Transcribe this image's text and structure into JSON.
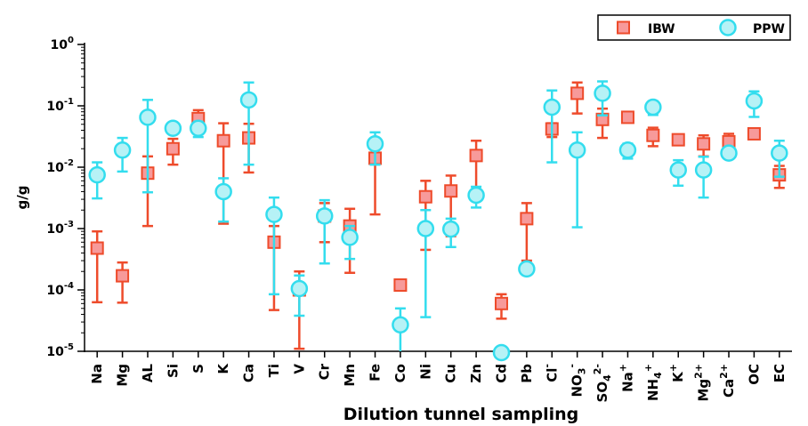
{
  "chart_data": {
    "type": "scatter",
    "xlabel": "Dilution tunnel sampling",
    "ylabel": "g/g",
    "yscale": "log",
    "ylim": [
      1e-05,
      1
    ],
    "yticks": [
      {
        "value": 1,
        "mantissa": "10",
        "exp": "0"
      },
      {
        "value": 0.1,
        "mantissa": "10",
        "exp": "-1"
      },
      {
        "value": 0.01,
        "mantissa": "10",
        "exp": "-2"
      },
      {
        "value": 0.001,
        "mantissa": "10",
        "exp": "-3"
      },
      {
        "value": 0.0001,
        "mantissa": "10",
        "exp": "-4"
      },
      {
        "value": 1e-05,
        "mantissa": "10",
        "exp": "-5"
      }
    ],
    "categories": [
      {
        "base": "Na",
        "sup": ""
      },
      {
        "base": "Mg",
        "sup": ""
      },
      {
        "base": "AL",
        "sup": ""
      },
      {
        "base": "Si",
        "sup": ""
      },
      {
        "base": "S",
        "sup": ""
      },
      {
        "base": "K",
        "sup": ""
      },
      {
        "base": "Ca",
        "sup": ""
      },
      {
        "base": "Ti",
        "sup": ""
      },
      {
        "base": "V",
        "sup": ""
      },
      {
        "base": "Cr",
        "sup": ""
      },
      {
        "base": "Mn",
        "sup": ""
      },
      {
        "base": "Fe",
        "sup": ""
      },
      {
        "base": "Co",
        "sup": ""
      },
      {
        "base": "Ni",
        "sup": ""
      },
      {
        "base": "Cu",
        "sup": ""
      },
      {
        "base": "Zn",
        "sup": ""
      },
      {
        "base": "Cd",
        "sup": ""
      },
      {
        "base": "Pb",
        "sup": ""
      },
      {
        "base": "Cl",
        "sup": "-"
      },
      {
        "base": "NO3",
        "sup": "-"
      },
      {
        "base": "SO4",
        "sup": "2-"
      },
      {
        "base": "Na",
        "sup": "+"
      },
      {
        "base": "NH4",
        "sup": "+"
      },
      {
        "base": "K",
        "sup": "+"
      },
      {
        "base": "Mg",
        "sup": "2+"
      },
      {
        "base": "Ca",
        "sup": "2+"
      },
      {
        "base": "OC",
        "sup": ""
      },
      {
        "base": "EC",
        "sup": ""
      }
    ],
    "legend": {
      "position": "top-right"
    },
    "series": [
      {
        "name": "IBW",
        "marker": "square",
        "color": "#ee4b2b",
        "fill": "#f79a9a",
        "points": [
          {
            "y": 0.00048,
            "lo": 6.3e-05,
            "hi": 0.0009
          },
          {
            "y": 0.00017,
            "lo": 6.2e-05,
            "hi": 0.00028
          },
          {
            "y": 0.008,
            "lo": 0.0011,
            "hi": 0.015
          },
          {
            "y": 0.02,
            "lo": 0.011,
            "hi": 0.029
          },
          {
            "y": 0.062,
            "lo": 0.043,
            "hi": 0.085
          },
          {
            "y": 0.027,
            "lo": 0.0012,
            "hi": 0.052
          },
          {
            "y": 0.03,
            "lo": 0.0082,
            "hi": 0.051
          },
          {
            "y": 0.0006,
            "lo": 4.7e-05,
            "hi": 0.0011
          },
          {
            "y": 0.0001,
            "lo": 1.1e-05,
            "hi": 0.0002
          },
          {
            "y": 0.0016,
            "lo": 0.0006,
            "hi": 0.0026
          },
          {
            "y": 0.0011,
            "lo": 0.00019,
            "hi": 0.0021
          },
          {
            "y": 0.014,
            "lo": 0.0017,
            "hi": 0.026
          },
          {
            "y": 0.00012,
            "lo": null,
            "hi": null
          },
          {
            "y": 0.0033,
            "lo": 0.00045,
            "hi": 0.006
          },
          {
            "y": 0.0041,
            "lo": 0.00075,
            "hi": 0.0073
          },
          {
            "y": 0.0155,
            "lo": 0.0041,
            "hi": 0.027
          },
          {
            "y": 6e-05,
            "lo": 3.4e-05,
            "hi": 8.5e-05
          },
          {
            "y": 0.00145,
            "lo": 0.0003,
            "hi": 0.0026
          },
          {
            "y": 0.042,
            "lo": 0.031,
            "hi": 0.052
          },
          {
            "y": 0.16,
            "lo": 0.075,
            "hi": 0.24
          },
          {
            "y": 0.06,
            "lo": 0.03,
            "hi": 0.09
          },
          {
            "y": 0.065,
            "lo": 0.06,
            "hi": 0.07
          },
          {
            "y": 0.033,
            "lo": 0.022,
            "hi": 0.044
          },
          {
            "y": 0.028,
            "lo": 0.024,
            "hi": 0.032
          },
          {
            "y": 0.024,
            "lo": 0.015,
            "hi": 0.033
          },
          {
            "y": 0.026,
            "lo": 0.017,
            "hi": 0.035
          },
          {
            "y": 0.035,
            "lo": 0.031,
            "hi": 0.039
          },
          {
            "y": 0.0075,
            "lo": 0.0046,
            "hi": 0.0105
          }
        ]
      },
      {
        "name": "PPW",
        "marker": "circle",
        "color": "#33ddee",
        "fill": "#b6f2f6",
        "points": [
          {
            "y": 0.0075,
            "lo": 0.0031,
            "hi": 0.012
          },
          {
            "y": 0.019,
            "lo": 0.0085,
            "hi": 0.03
          },
          {
            "y": 0.065,
            "lo": 0.0039,
            "hi": 0.125
          },
          {
            "y": 0.043,
            "lo": 0.037,
            "hi": 0.049
          },
          {
            "y": 0.043,
            "lo": 0.031,
            "hi": 0.055
          },
          {
            "y": 0.004,
            "lo": 0.0013,
            "hi": 0.0066
          },
          {
            "y": 0.125,
            "lo": 0.011,
            "hi": 0.24
          },
          {
            "y": 0.0017,
            "lo": 8.5e-05,
            "hi": 0.0032
          },
          {
            "y": 0.000105,
            "lo": 3.8e-05,
            "hi": 0.000172
          },
          {
            "y": 0.0016,
            "lo": 0.00027,
            "hi": 0.0029
          },
          {
            "y": 0.00072,
            "lo": 0.00032,
            "hi": 0.0011
          },
          {
            "y": 0.024,
            "lo": 0.011,
            "hi": 0.037
          },
          {
            "y": 2.7e-05,
            "lo": 4.5e-06,
            "hi": 5e-05
          },
          {
            "y": 0.001,
            "lo": 3.6e-05,
            "hi": 0.002
          },
          {
            "y": 0.00098,
            "lo": 0.0005,
            "hi": 0.00145
          },
          {
            "y": 0.0035,
            "lo": 0.0022,
            "hi": 0.0048
          },
          {
            "y": 9.5e-06,
            "lo": null,
            "hi": null
          },
          {
            "y": 0.00022,
            "lo": 0.000205,
            "hi": 0.000235
          },
          {
            "y": 0.095,
            "lo": 0.012,
            "hi": 0.178
          },
          {
            "y": 0.019,
            "lo": 0.00105,
            "hi": 0.037
          },
          {
            "y": 0.16,
            "lo": 0.07,
            "hi": 0.25
          },
          {
            "y": 0.019,
            "lo": 0.0138,
            "hi": 0.0242
          },
          {
            "y": 0.095,
            "lo": 0.071,
            "hi": 0.119
          },
          {
            "y": 0.009,
            "lo": 0.005,
            "hi": 0.013
          },
          {
            "y": 0.009,
            "lo": 0.0032,
            "hi": 0.0148
          },
          {
            "y": 0.017,
            "lo": 0.0145,
            "hi": 0.0195
          },
          {
            "y": 0.12,
            "lo": 0.066,
            "hi": 0.172
          },
          {
            "y": 0.017,
            "lo": 0.007,
            "hi": 0.027
          }
        ]
      }
    ]
  }
}
